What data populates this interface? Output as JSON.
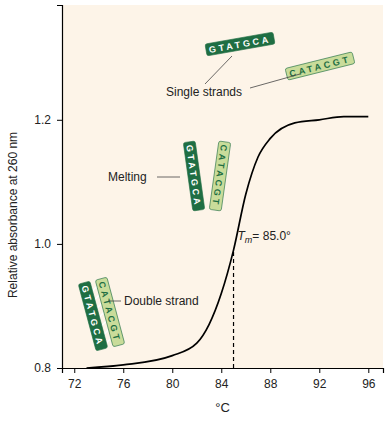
{
  "chart_data": {
    "type": "line",
    "x": [
      73,
      76,
      80,
      82,
      83,
      84,
      85,
      86,
      87,
      88,
      90,
      92,
      94,
      96
    ],
    "values": [
      0.8,
      0.805,
      0.82,
      0.84,
      0.87,
      0.92,
      0.99,
      1.08,
      1.14,
      1.17,
      1.195,
      1.2,
      1.205,
      1.205
    ],
    "color": "#000000",
    "xlim": [
      71,
      97.2
    ],
    "ylim": [
      0.8,
      1.385
    ],
    "xticks": [
      72,
      76,
      80,
      84,
      88,
      92,
      96
    ],
    "yticks": [
      0.8,
      {
        "value": 1,
        "label": "1.0"
      },
      1.2
    ],
    "xlabel": "°C",
    "ylabel": "Relative absorbance at 260 nm",
    "annotations": [
      {
        "text": "Single strands"
      },
      {
        "text": "Melting"
      },
      {
        "text": "Double strand"
      }
    ],
    "melting_point": {
      "x": 85,
      "label": "Tm= 85.0°"
    },
    "strands": [
      "GTATGCA",
      "CATACGT"
    ]
  }
}
